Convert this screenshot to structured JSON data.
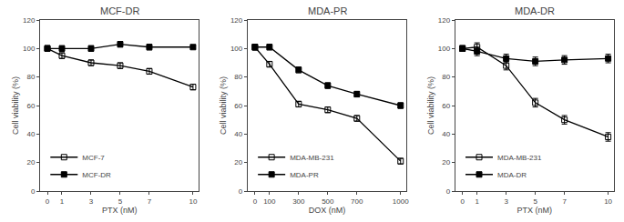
{
  "chart_data": [
    {
      "type": "line",
      "title": "MCF-DR",
      "xlabel": "PTX (nM)",
      "ylabel": "Cell viability (%)",
      "x": [
        0,
        1,
        3,
        5,
        7,
        10
      ],
      "series": [
        {
          "name": "MCF-7",
          "color": "#000000",
          "marker": "square-open",
          "line_style": "solid",
          "values": [
            100,
            95,
            90,
            88,
            84,
            73
          ],
          "errors": [
            2,
            2,
            2,
            2,
            2,
            2
          ]
        },
        {
          "name": "MCF-DR",
          "color": "#000000",
          "marker": "square",
          "line_style": "solid",
          "values": [
            100,
            100,
            100,
            103,
            101,
            101
          ],
          "errors": [
            2,
            2,
            2,
            2,
            2,
            1
          ]
        }
      ],
      "xlim": [
        -0.5,
        10.4
      ],
      "xticks": [
        0,
        1,
        3,
        5,
        7,
        10
      ],
      "ylim": [
        0,
        120
      ],
      "yticks": [
        0,
        20,
        40,
        60,
        80,
        100,
        120
      ],
      "grid": false,
      "legend": "lower left"
    },
    {
      "type": "line",
      "title": "MDA-PR",
      "xlabel": "DOX (nM)",
      "ylabel": "Cell viability (%)",
      "x": [
        0,
        100,
        300,
        500,
        700,
        1000
      ],
      "series": [
        {
          "name": "MDA-MB-231",
          "color": "#000000",
          "marker": "square-open",
          "line_style": "solid",
          "values": [
            101,
            89,
            61,
            57,
            51,
            21
          ],
          "errors": [
            2,
            2,
            2,
            2,
            2,
            2
          ]
        },
        {
          "name": "MDA-PR",
          "color": "#000000",
          "marker": "square",
          "line_style": "solid",
          "values": [
            101,
            101,
            85,
            74,
            68,
            60
          ],
          "errors": [
            2,
            2,
            2,
            2,
            2,
            2
          ]
        }
      ],
      "xlim": [
        -50,
        1040
      ],
      "xticks": [
        0,
        100,
        300,
        500,
        700,
        1000
      ],
      "ylim": [
        0,
        120
      ],
      "yticks": [
        0,
        20,
        40,
        60,
        80,
        100,
        120
      ],
      "grid": false,
      "legend": "lower left"
    },
    {
      "type": "line",
      "title": "MDA-DR",
      "xlabel": "PTX (nM)",
      "ylabel": "Cell viability (%)",
      "x": [
        0,
        1,
        3,
        5,
        7,
        10
      ],
      "series": [
        {
          "name": "MDA-MB-231",
          "color": "#000000",
          "marker": "square-open",
          "line_style": "solid",
          "values": [
            100,
            101,
            88,
            62,
            50,
            38
          ],
          "errors": [
            2,
            3,
            3,
            3,
            3,
            3
          ]
        },
        {
          "name": "MDA-DR",
          "color": "#000000",
          "marker": "square",
          "line_style": "solid",
          "values": [
            100,
            98,
            93,
            91,
            92,
            93
          ],
          "errors": [
            2,
            3,
            3,
            3,
            3,
            3
          ]
        }
      ],
      "xlim": [
        -0.5,
        10.4
      ],
      "xticks": [
        0,
        1,
        3,
        5,
        7,
        10
      ],
      "ylim": [
        0,
        120
      ],
      "yticks": [
        0,
        20,
        40,
        60,
        80,
        100,
        120
      ],
      "grid": false,
      "legend": "lower left"
    }
  ]
}
